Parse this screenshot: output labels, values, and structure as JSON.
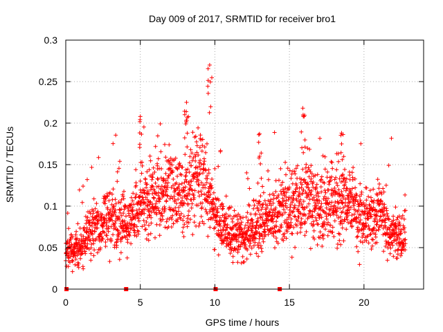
{
  "chart_data": {
    "type": "scatter",
    "title": "Day 009 of 2017, SRMTID for receiver bro1",
    "xlabel": "GPS time / hours",
    "ylabel": "SRMTID / TECUs",
    "xlim": [
      0,
      24
    ],
    "ylim": [
      0,
      0.3
    ],
    "xticks": [
      0,
      5,
      10,
      15,
      20
    ],
    "xtick_labels": [
      "0",
      "5",
      "10",
      "15",
      "20"
    ],
    "yticks": [
      0,
      0.05,
      0.1,
      0.15,
      0.2,
      0.25,
      0.3
    ],
    "ytick_labels": [
      "0",
      "0.05",
      "0.1",
      "0.15",
      "0.2",
      "0.25",
      "0.3"
    ],
    "grid": true,
    "marker": "+",
    "series": [
      {
        "name": "SRMTID",
        "color": "#ff0000",
        "sampling_interval_hours": 0.01,
        "envelope_hours": [
          0,
          1,
          2,
          3,
          4,
          5,
          6,
          7,
          8,
          9,
          10,
          11,
          12,
          13,
          14,
          15,
          16,
          17,
          18,
          19,
          20,
          21,
          22,
          22.8
        ],
        "envelope_values": [
          0.045,
          0.05,
          0.075,
          0.085,
          0.075,
          0.1,
          0.11,
          0.12,
          0.115,
          0.14,
          0.085,
          0.07,
          0.065,
          0.08,
          0.085,
          0.1,
          0.115,
          0.095,
          0.1,
          0.11,
          0.08,
          0.09,
          0.065,
          0.06
        ],
        "peaks": [
          {
            "x": 9.65,
            "y": 0.27
          },
          {
            "x": 8.1,
            "y": 0.225
          },
          {
            "x": 15.9,
            "y": 0.218
          },
          {
            "x": 5.0,
            "y": 0.208
          },
          {
            "x": 18.5,
            "y": 0.188
          },
          {
            "x": 13.0,
            "y": 0.187
          }
        ]
      },
      {
        "name": "zero-markers",
        "color": "#ff0000",
        "marker": "square",
        "x": [
          0.05,
          4.05,
          10.05,
          14.35
        ],
        "y": [
          0,
          0,
          0,
          0
        ]
      }
    ]
  }
}
